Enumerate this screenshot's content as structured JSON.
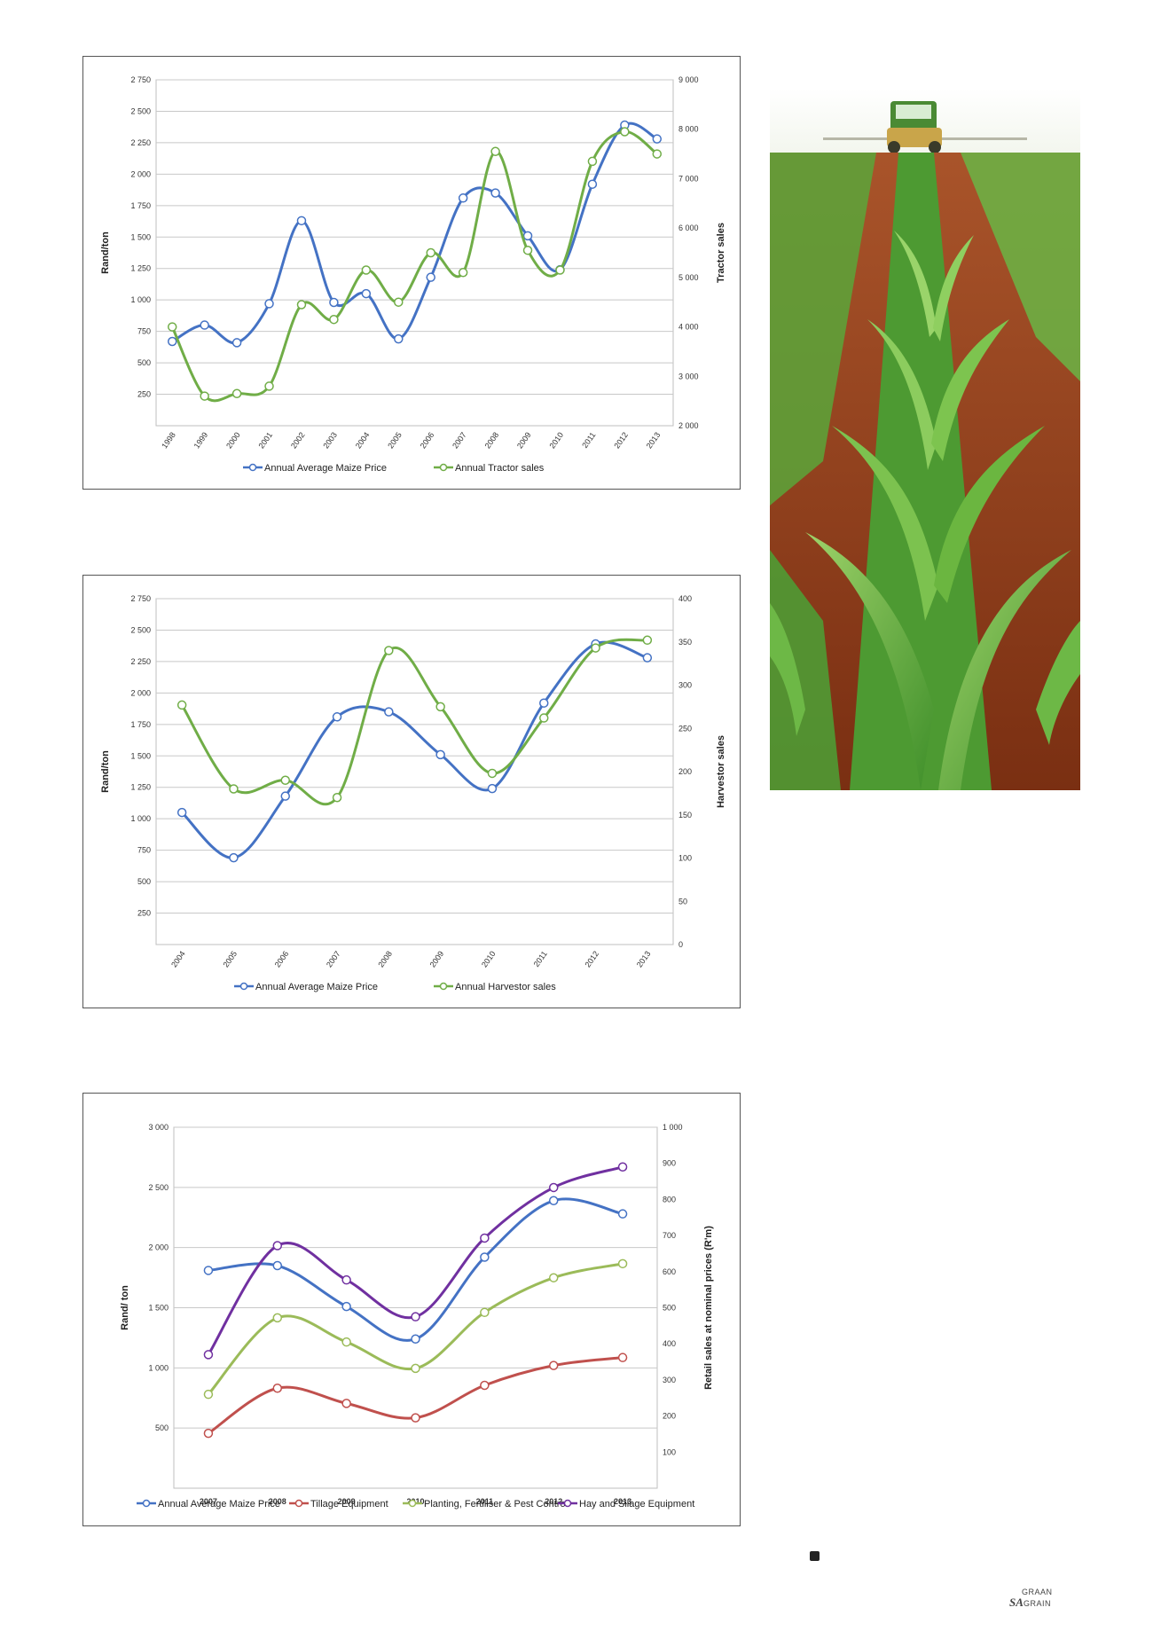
{
  "chart_data": [
    {
      "type": "line",
      "x": [
        "1998",
        "1999",
        "2000",
        "2001",
        "2002",
        "2003",
        "2004",
        "2005",
        "2006",
        "2007",
        "2008",
        "2009",
        "2010",
        "2011",
        "2012",
        "2013"
      ],
      "ylabel": "Rand/ton",
      "y2label": "Tractor sales",
      "ylim": [
        0,
        2750
      ],
      "y2lim": [
        2000,
        9000
      ],
      "yticks": [
        250,
        500,
        750,
        1000,
        1250,
        1500,
        1750,
        2000,
        2250,
        2500,
        2750
      ],
      "yticklabels": [
        "250",
        "500",
        "750",
        "1 000",
        "1 250",
        "1 500",
        "1 750",
        "2 000",
        "2 250",
        "2 500",
        "2 750"
      ],
      "y2ticks": [
        2000,
        3000,
        4000,
        5000,
        6000,
        7000,
        8000,
        9000
      ],
      "y2ticklabels": [
        "2 000",
        "3 000",
        "4 000",
        "5 000",
        "6 000",
        "7 000",
        "8 000",
        "9 000"
      ],
      "grid": true,
      "legend_position": "bottom",
      "series": [
        {
          "name": "Annual Average Maize Price",
          "axis": "left",
          "color": "#4472c4",
          "values": [
            670,
            800,
            660,
            970,
            1630,
            980,
            1050,
            690,
            1180,
            1810,
            1850,
            1510,
            1240,
            1920,
            2390,
            2280
          ]
        },
        {
          "name": "Annual Tractor sales",
          "axis": "right",
          "color": "#70ad47",
          "values": [
            4000,
            2600,
            2650,
            2800,
            4450,
            4150,
            5150,
            4500,
            5500,
            5100,
            7550,
            5550,
            5150,
            7350,
            7950,
            7500
          ]
        }
      ]
    },
    {
      "type": "line",
      "x": [
        "2004",
        "2005",
        "2006",
        "2007",
        "2008",
        "2009",
        "2010",
        "2011",
        "2012",
        "2013"
      ],
      "ylabel": "Rand/ton",
      "y2label": "Harvestor  sales",
      "ylim": [
        0,
        2750
      ],
      "y2lim": [
        0,
        400
      ],
      "yticks": [
        250,
        500,
        750,
        1000,
        1250,
        1500,
        1750,
        2000,
        2250,
        2500,
        2750
      ],
      "yticklabels": [
        "250",
        "500",
        "750",
        "1 000",
        "1 250",
        "1 500",
        "1 750",
        "2 000",
        "2 250",
        "2 500",
        "2 750"
      ],
      "y2ticks": [
        0,
        50,
        100,
        150,
        200,
        250,
        300,
        350,
        400
      ],
      "y2ticklabels": [
        "0",
        "50",
        "100",
        "150",
        "200",
        "250",
        "300",
        "350",
        "400"
      ],
      "grid": true,
      "legend_position": "bottom",
      "series": [
        {
          "name": "Annual Average Maize Price",
          "axis": "left",
          "color": "#4472c4",
          "values": [
            1050,
            690,
            1180,
            1810,
            1850,
            1510,
            1240,
            1920,
            2390,
            2280
          ]
        },
        {
          "name": "Annual Harvestor sales",
          "axis": "right",
          "color": "#70ad47",
          "values": [
            277,
            180,
            190,
            170,
            340,
            275,
            198,
            262,
            343,
            352
          ]
        }
      ]
    },
    {
      "type": "line",
      "x": [
        "2007",
        "2008",
        "2009",
        "2010",
        "2011",
        "2012",
        "2013"
      ],
      "ylabel": "Rand/ ton",
      "y2label": "Retail sales at nominal prices (R'm)",
      "ylim": [
        0,
        3000
      ],
      "y2lim": [
        0,
        1000
      ],
      "yticks": [
        500,
        1000,
        1500,
        2000,
        2500,
        3000
      ],
      "yticklabels": [
        "500",
        "1 000",
        "1 500",
        "2 000",
        "2 500",
        "3 000"
      ],
      "y2ticks": [
        100,
        200,
        300,
        400,
        500,
        600,
        700,
        800,
        900,
        1000
      ],
      "y2ticklabels": [
        "100",
        "200",
        "300",
        "400",
        "500",
        "600",
        "700",
        "800",
        "900",
        "1 000"
      ],
      "grid": true,
      "legend_position": "bottom",
      "series": [
        {
          "name": "Annual Average Maize Price",
          "axis": "left",
          "color": "#4472c4",
          "values": [
            1810,
            1850,
            1510,
            1240,
            1920,
            2390,
            2280
          ]
        },
        {
          "name": "Tillage Equipment",
          "axis": "right",
          "color": "#c0504d",
          "values": [
            152,
            277,
            235,
            195,
            285,
            340,
            362
          ]
        },
        {
          "name": "Planting, Fertiliser & Pest Control",
          "axis": "right",
          "color": "#9bbb59",
          "values": [
            260,
            472,
            405,
            332,
            487,
            583,
            622
          ]
        },
        {
          "name": "Hay and Silage Equipment",
          "axis": "right",
          "color": "#7030a0",
          "values": [
            370,
            672,
            577,
            475,
            693,
            833,
            890
          ]
        }
      ]
    }
  ],
  "logo": {
    "graan": "GRAAN",
    "sa": "SA",
    "grain": "GRAIN"
  },
  "photo": {
    "icon": "tractor-maize-field"
  }
}
